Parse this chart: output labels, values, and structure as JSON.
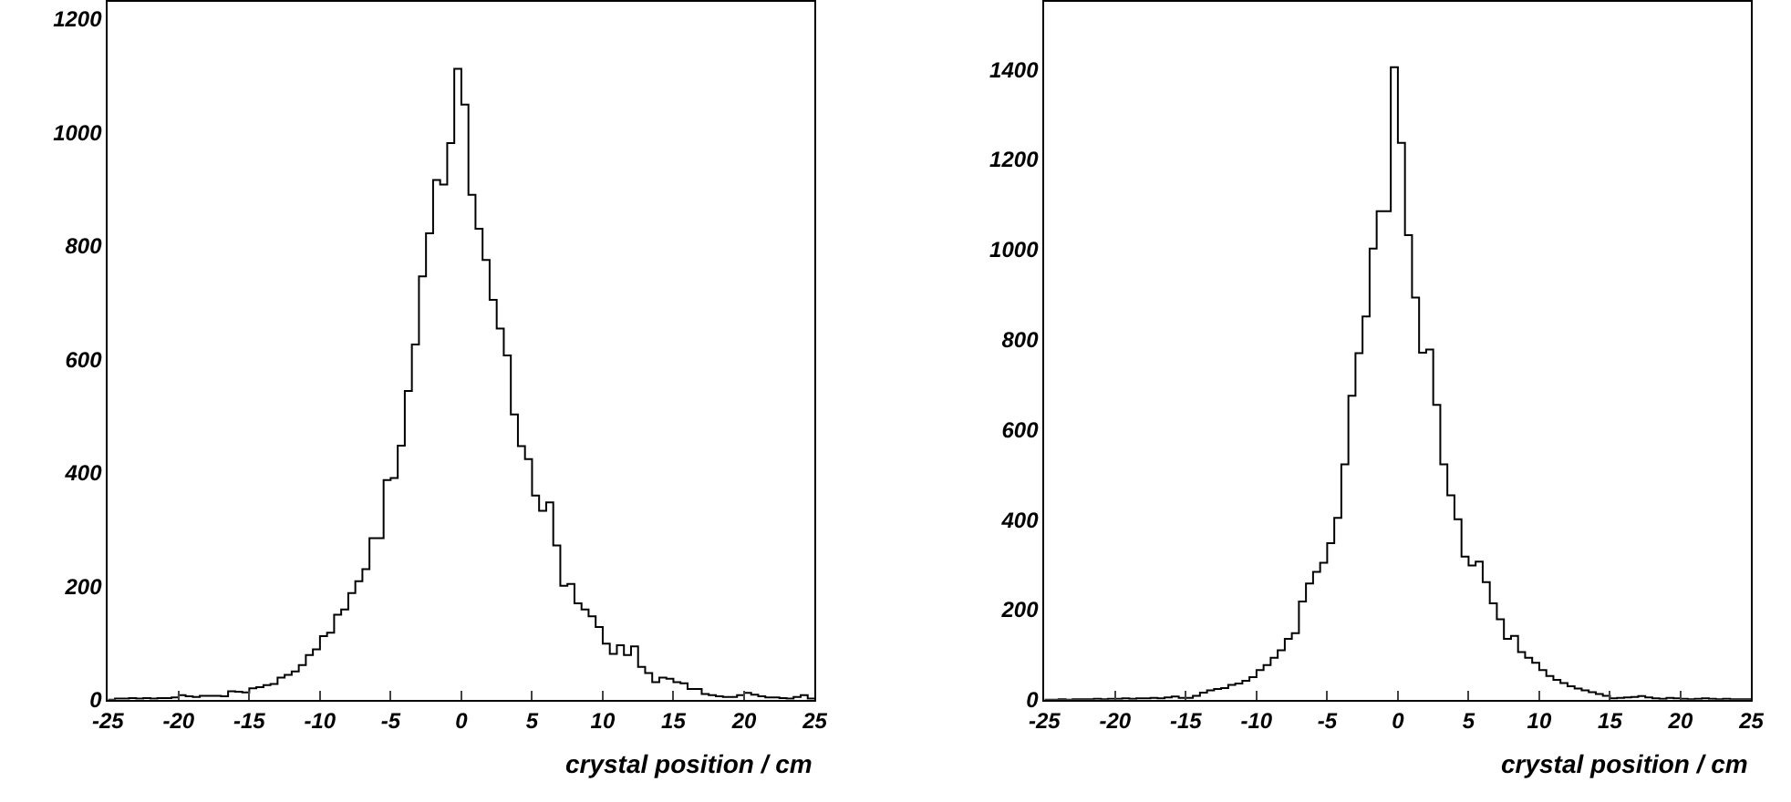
{
  "chart_data": [
    {
      "type": "histogram",
      "xlabel": "crystal position / cm",
      "color": "#000000",
      "xlim": [
        -25,
        25
      ],
      "xticks": [
        -25,
        -20,
        -15,
        -10,
        -5,
        0,
        5,
        10,
        15,
        20,
        25
      ],
      "ylim": [
        0,
        1230
      ],
      "yticks": [
        0,
        200,
        400,
        600,
        800,
        1000,
        1200
      ],
      "bins": [
        -25,
        -24.5,
        -24,
        -23.5,
        -23,
        -22.5,
        -22,
        -21.5,
        -21,
        -20.5,
        -20,
        -19.5,
        -19,
        -18.5,
        -18,
        -17.5,
        -17,
        -16.5,
        -16,
        -15.5,
        -15,
        -14.5,
        -14,
        -13.5,
        -13,
        -12.5,
        -12,
        -11.5,
        -11,
        -10.5,
        -10,
        -9.5,
        -9,
        -8.5,
        -8,
        -7.5,
        -7,
        -6.5,
        -6,
        -5.5,
        -5,
        -4.5,
        -4,
        -3.5,
        -3,
        -2.5,
        -2,
        -1.5,
        -1,
        -0.5,
        0,
        0.5,
        1,
        1.5,
        2,
        2.5,
        3,
        3.5,
        4,
        4.5,
        5,
        5.5,
        6,
        6.5,
        7,
        7.5,
        8,
        8.5,
        9,
        9.5,
        10,
        10.5,
        11,
        11.5,
        12,
        12.5,
        13,
        13.5,
        14,
        14.5,
        15,
        15.5,
        16,
        16.5,
        17,
        17.5,
        18,
        18.5,
        19,
        19.5,
        20,
        20.5,
        21,
        21.5,
        22,
        22.5,
        23,
        23.5,
        24,
        24.5,
        25
      ],
      "values": [
        0,
        2,
        2,
        3,
        2,
        3,
        2,
        3,
        3,
        4,
        8,
        6,
        5,
        7,
        7,
        7,
        6,
        15,
        14,
        13,
        20,
        22,
        26,
        28,
        39,
        44,
        50,
        61,
        79,
        89,
        112,
        118,
        150,
        159,
        188,
        209,
        230,
        285,
        285,
        387,
        391,
        448,
        544,
        626,
        746,
        822,
        916,
        908,
        981,
        1112,
        1049,
        890,
        830,
        775,
        705,
        654,
        607,
        503,
        447,
        424,
        360,
        333,
        348,
        272,
        201,
        204,
        170,
        159,
        147,
        128,
        99,
        81,
        96,
        79,
        94,
        58,
        47,
        31,
        39,
        37,
        31,
        29,
        19,
        19,
        10,
        8,
        6,
        5,
        5,
        8,
        12,
        9,
        6,
        4,
        4,
        3,
        2,
        5,
        8,
        2
      ]
    },
    {
      "type": "histogram",
      "xlabel": "crystal position / cm",
      "color": "#000000",
      "xlim": [
        -25,
        25
      ],
      "xticks": [
        -25,
        -20,
        -15,
        -10,
        -5,
        0,
        5,
        10,
        15,
        20,
        25
      ],
      "ylim": [
        0,
        1550
      ],
      "yticks": [
        0,
        200,
        400,
        600,
        800,
        1000,
        1200,
        1400
      ],
      "bins": [
        -25,
        -24.5,
        -24,
        -23.5,
        -23,
        -22.5,
        -22,
        -21.5,
        -21,
        -20.5,
        -20,
        -19.5,
        -19,
        -18.5,
        -18,
        -17.5,
        -17,
        -16.5,
        -16,
        -15.5,
        -15,
        -14.5,
        -14,
        -13.5,
        -13,
        -12.5,
        -12,
        -11.5,
        -11,
        -10.5,
        -10,
        -9.5,
        -9,
        -8.5,
        -8,
        -7.5,
        -7,
        -6.5,
        -6,
        -5.5,
        -5,
        -4.5,
        -4,
        -3.5,
        -3,
        -2.5,
        -2,
        -1.5,
        -1,
        -0.5,
        0,
        0.5,
        1,
        1.5,
        2,
        2.5,
        3,
        3.5,
        4,
        4.5,
        5,
        5.5,
        6,
        6.5,
        7,
        7.5,
        8,
        8.5,
        9,
        9.5,
        10,
        10.5,
        11,
        11.5,
        12,
        12.5,
        13,
        13.5,
        14,
        14.5,
        15,
        15.5,
        16,
        16.5,
        17,
        17.5,
        18,
        18.5,
        19,
        19.5,
        20,
        20.5,
        21,
        21.5,
        22,
        22.5,
        23,
        23.5,
        24,
        24.5,
        25
      ],
      "values": [
        0,
        0,
        1,
        0,
        1,
        1,
        1,
        2,
        1,
        2,
        2,
        3,
        2,
        3,
        3,
        4,
        3,
        5,
        7,
        4,
        4,
        9,
        16,
        21,
        24,
        26,
        33,
        36,
        42,
        50,
        66,
        77,
        93,
        110,
        135,
        148,
        218,
        258,
        284,
        304,
        348,
        404,
        523,
        675,
        770,
        851,
        1002,
        1085,
        1085,
        1405,
        1237,
        1032,
        893,
        771,
        778,
        655,
        523,
        454,
        401,
        318,
        298,
        307,
        261,
        214,
        179,
        135,
        142,
        106,
        93,
        82,
        66,
        53,
        44,
        37,
        30,
        25,
        21,
        17,
        13,
        9,
        3,
        4,
        5,
        6,
        8,
        5,
        3,
        2,
        4,
        3,
        2,
        1,
        2,
        3,
        2,
        1,
        2,
        1,
        1,
        1
      ]
    }
  ]
}
